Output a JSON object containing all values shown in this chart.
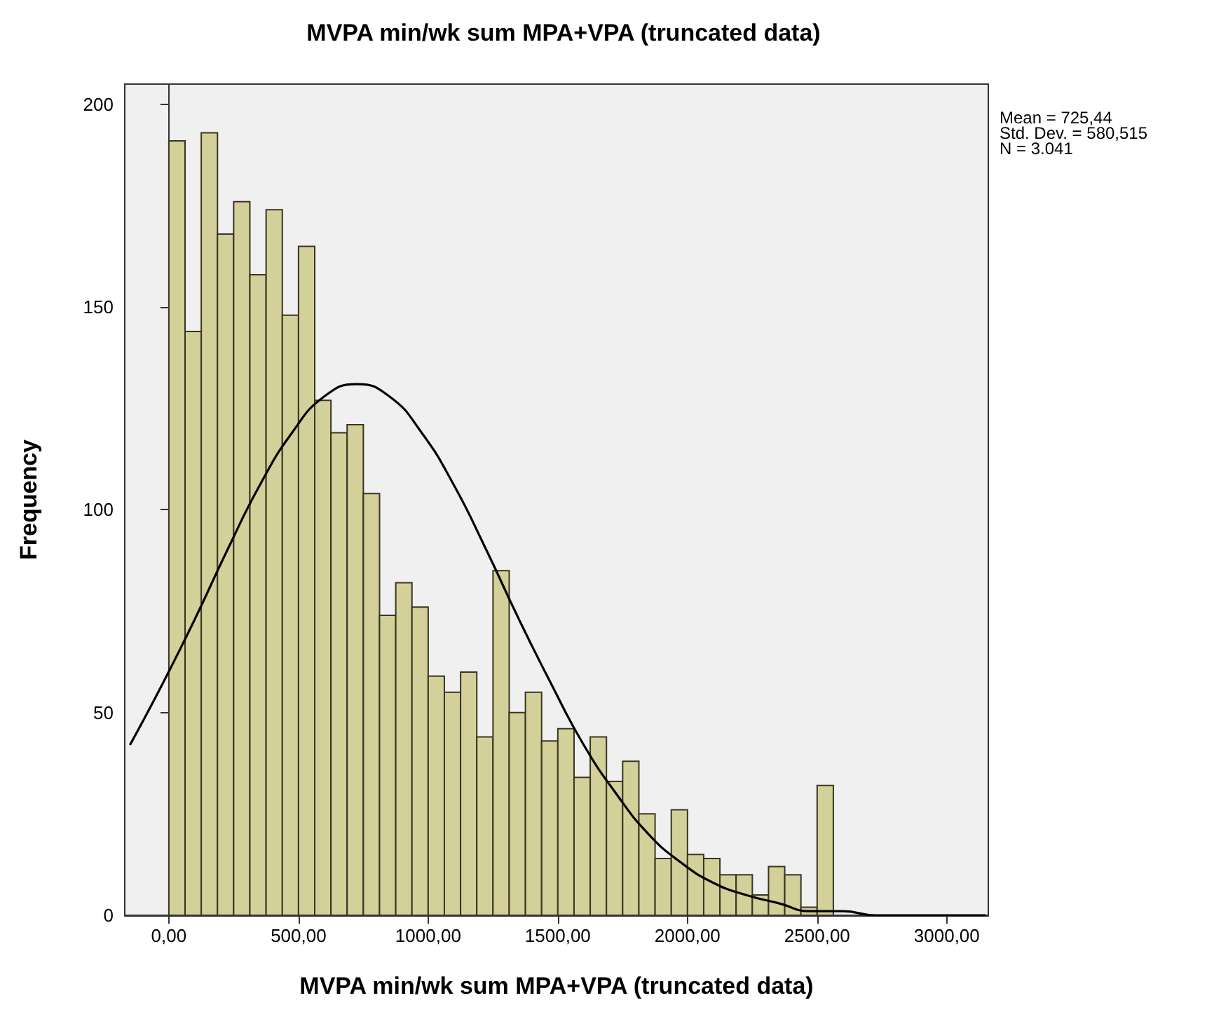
{
  "chart_data": {
    "type": "histogram",
    "title": "MVPA min/wk sum MPA+VPA (truncated data)",
    "xlabel": "MVPA min/wk sum MPA+VPA (truncated data)",
    "ylabel": "Frequency",
    "bins": [
      0,
      62.5,
      125,
      187.5,
      250,
      312.5,
      375,
      437.5,
      500,
      562.5,
      625,
      687.5,
      750,
      812.5,
      875,
      937.5,
      1000,
      1062.5,
      1125,
      1187.5,
      1250,
      1312.5,
      1375,
      1437.5,
      1500,
      1562.5,
      1625,
      1687.5,
      1750,
      1812.5,
      1875,
      1937.5,
      2000,
      2062.5,
      2125,
      2187.5,
      2250,
      2312.5,
      2375,
      2437.5,
      2500,
      2562.5
    ],
    "values": [
      191,
      144,
      193,
      168,
      176,
      158,
      174,
      148,
      165,
      127,
      119,
      121,
      104,
      74,
      82,
      76,
      59,
      55,
      60,
      44,
      85,
      50,
      55,
      43,
      46,
      34,
      44,
      33,
      38,
      25,
      14,
      26,
      15,
      14,
      10,
      10,
      5,
      12,
      10,
      2,
      32
    ],
    "color": "#d4d09a",
    "series": [
      {
        "type": "line",
        "color": "#000000",
        "x": [
          -150,
          -25,
          100,
          225,
          350,
          475,
          600,
          725,
          850,
          975,
          1100,
          1225,
          1350,
          1475,
          1600,
          1725,
          1850,
          1975,
          2100,
          2225,
          2350,
          2475,
          2600,
          2725,
          2850,
          3000,
          3150
        ],
        "values": [
          42,
          57,
          73,
          90,
          106,
          119,
          128,
          131,
          128,
          119,
          106,
          90,
          73,
          57,
          42,
          30,
          20,
          13,
          8,
          5,
          3,
          1,
          1,
          0,
          0,
          0,
          0
        ]
      }
    ],
    "xlim": [
      -170,
      3160
    ],
    "ylim": [
      0,
      205
    ],
    "xticks": [
      {
        "value": 0,
        "label": "0,00"
      },
      {
        "value": 500,
        "label": "500,00"
      },
      {
        "value": 1000,
        "label": "1000,00"
      },
      {
        "value": 1500,
        "label": "1500,00"
      },
      {
        "value": 2000,
        "label": "2000,00"
      },
      {
        "value": 2500,
        "label": "2500,00"
      },
      {
        "value": 3000,
        "label": "3000,00"
      }
    ],
    "yticks": [
      0,
      50,
      100,
      150,
      200
    ],
    "annotations": [
      "Mean = 725,44",
      "Std. Dev. = 580,515",
      "N = 3.041"
    ]
  }
}
